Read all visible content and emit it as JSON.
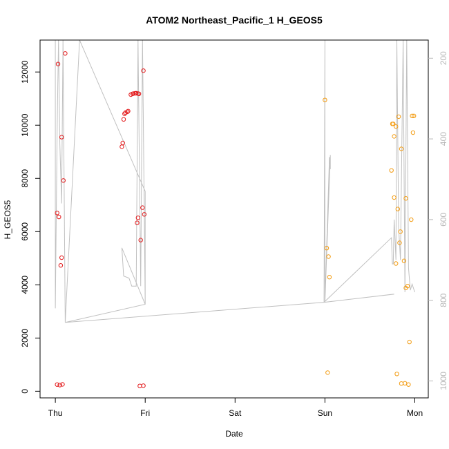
{
  "chart_data": {
    "type": "scatter",
    "title": "ATOM2 Northeast_Pacific_1 H_GEOS5",
    "xlabel": "Date",
    "ylabel": "H_GEOS5",
    "x_ticks": [
      "Thu",
      "Fri",
      "Sat",
      "Sun",
      "Mon"
    ],
    "xlim_days": [
      -0.17,
      4.15
    ],
    "ylim": [
      -250,
      13200
    ],
    "y_ticks": [
      0,
      2000,
      4000,
      6000,
      8000,
      10000,
      12000
    ],
    "y2_ticks": [
      200,
      400,
      600,
      800,
      1000
    ],
    "y2lim": [
      1042,
      155
    ],
    "colors": {
      "red": "#e31a1c",
      "orange": "#f39c12",
      "line": "#c0c0c0",
      "frame": "#000000",
      "right_axis": "#b8b8b8"
    },
    "series": [
      {
        "color": "red",
        "points": [
          [
            0.02,
            250
          ],
          [
            0.05,
            230
          ],
          [
            0.08,
            260
          ],
          [
            0.03,
            12300
          ],
          [
            0.11,
            12700
          ],
          [
            0.07,
            9550
          ],
          [
            0.09,
            7920
          ],
          [
            0.02,
            6700
          ],
          [
            0.04,
            6550
          ],
          [
            0.07,
            5020
          ],
          [
            0.06,
            4730
          ],
          [
            0.94,
            200
          ],
          [
            0.98,
            210
          ],
          [
            0.98,
            12050
          ],
          [
            0.93,
            11180
          ],
          [
            0.92,
            11190
          ],
          [
            0.84,
            11150
          ],
          [
            0.86,
            11180
          ],
          [
            0.87,
            11190
          ],
          [
            0.89,
            11200
          ],
          [
            0.9,
            11200
          ],
          [
            0.81,
            10530
          ],
          [
            0.8,
            10500
          ],
          [
            0.78,
            10470
          ],
          [
            0.77,
            10430
          ],
          [
            0.76,
            10220
          ],
          [
            0.75,
            9330
          ],
          [
            0.74,
            9190
          ],
          [
            0.97,
            6900
          ],
          [
            0.99,
            6650
          ],
          [
            0.92,
            6520
          ],
          [
            0.91,
            6330
          ],
          [
            0.95,
            5680
          ]
        ]
      },
      {
        "color": "orange",
        "points": [
          [
            3.0,
            10950
          ],
          [
            3.02,
            5380
          ],
          [
            3.04,
            5060
          ],
          [
            3.05,
            4290
          ],
          [
            3.03,
            700
          ],
          [
            3.75,
            10050
          ],
          [
            3.76,
            10050
          ],
          [
            3.79,
            9950
          ],
          [
            3.82,
            10320
          ],
          [
            3.97,
            10350
          ],
          [
            3.99,
            10350
          ],
          [
            3.77,
            9580
          ],
          [
            3.98,
            9720
          ],
          [
            3.85,
            9110
          ],
          [
            3.74,
            8300
          ],
          [
            3.77,
            7280
          ],
          [
            3.9,
            7250
          ],
          [
            3.81,
            6850
          ],
          [
            3.96,
            6450
          ],
          [
            3.84,
            6000
          ],
          [
            3.83,
            5580
          ],
          [
            3.88,
            4900
          ],
          [
            3.79,
            4800
          ],
          [
            3.92,
            3950
          ],
          [
            3.9,
            3880
          ],
          [
            3.94,
            1850
          ],
          [
            3.8,
            650
          ],
          [
            3.85,
            290
          ],
          [
            3.89,
            300
          ],
          [
            3.93,
            250
          ]
        ]
      }
    ],
    "gray_line_right_axis": [
      [
        0.0,
        155
      ],
      [
        0.0,
        820
      ],
      [
        0.02,
        380
      ],
      [
        0.035,
        155
      ],
      [
        0.05,
        410
      ],
      [
        0.07,
        560
      ],
      [
        0.085,
        155
      ],
      [
        0.11,
        855
      ],
      [
        0.27,
        155
      ],
      [
        1.0,
        530
      ],
      [
        1.0,
        810
      ],
      [
        0.74,
        670
      ],
      [
        0.76,
        740
      ],
      [
        0.82,
        745
      ],
      [
        0.85,
        765
      ],
      [
        0.9,
        765
      ],
      [
        0.92,
        155
      ],
      [
        0.95,
        765
      ],
      [
        0.97,
        155
      ],
      [
        1.0,
        810
      ],
      [
        0.11,
        855
      ],
      [
        2.99,
        805
      ],
      [
        3.0,
        155
      ],
      [
        3.0,
        805
      ],
      [
        3.05,
        445
      ],
      [
        3.06,
        475
      ],
      [
        3.06,
        440
      ],
      [
        3.0,
        805
      ],
      [
        3.76,
        785
      ],
      [
        3.77,
        785
      ],
      [
        2.99,
        805
      ],
      [
        3.74,
        645
      ],
      [
        3.75,
        710
      ],
      [
        3.76,
        710
      ],
      [
        3.77,
        600
      ],
      [
        3.79,
        700
      ],
      [
        3.8,
        155
      ],
      [
        3.82,
        620
      ],
      [
        3.84,
        700
      ],
      [
        3.87,
        155
      ],
      [
        3.89,
        780
      ],
      [
        3.91,
        155
      ],
      [
        3.93,
        720
      ],
      [
        3.95,
        775
      ],
      [
        3.97,
        760
      ],
      [
        4.0,
        780
      ]
    ]
  }
}
